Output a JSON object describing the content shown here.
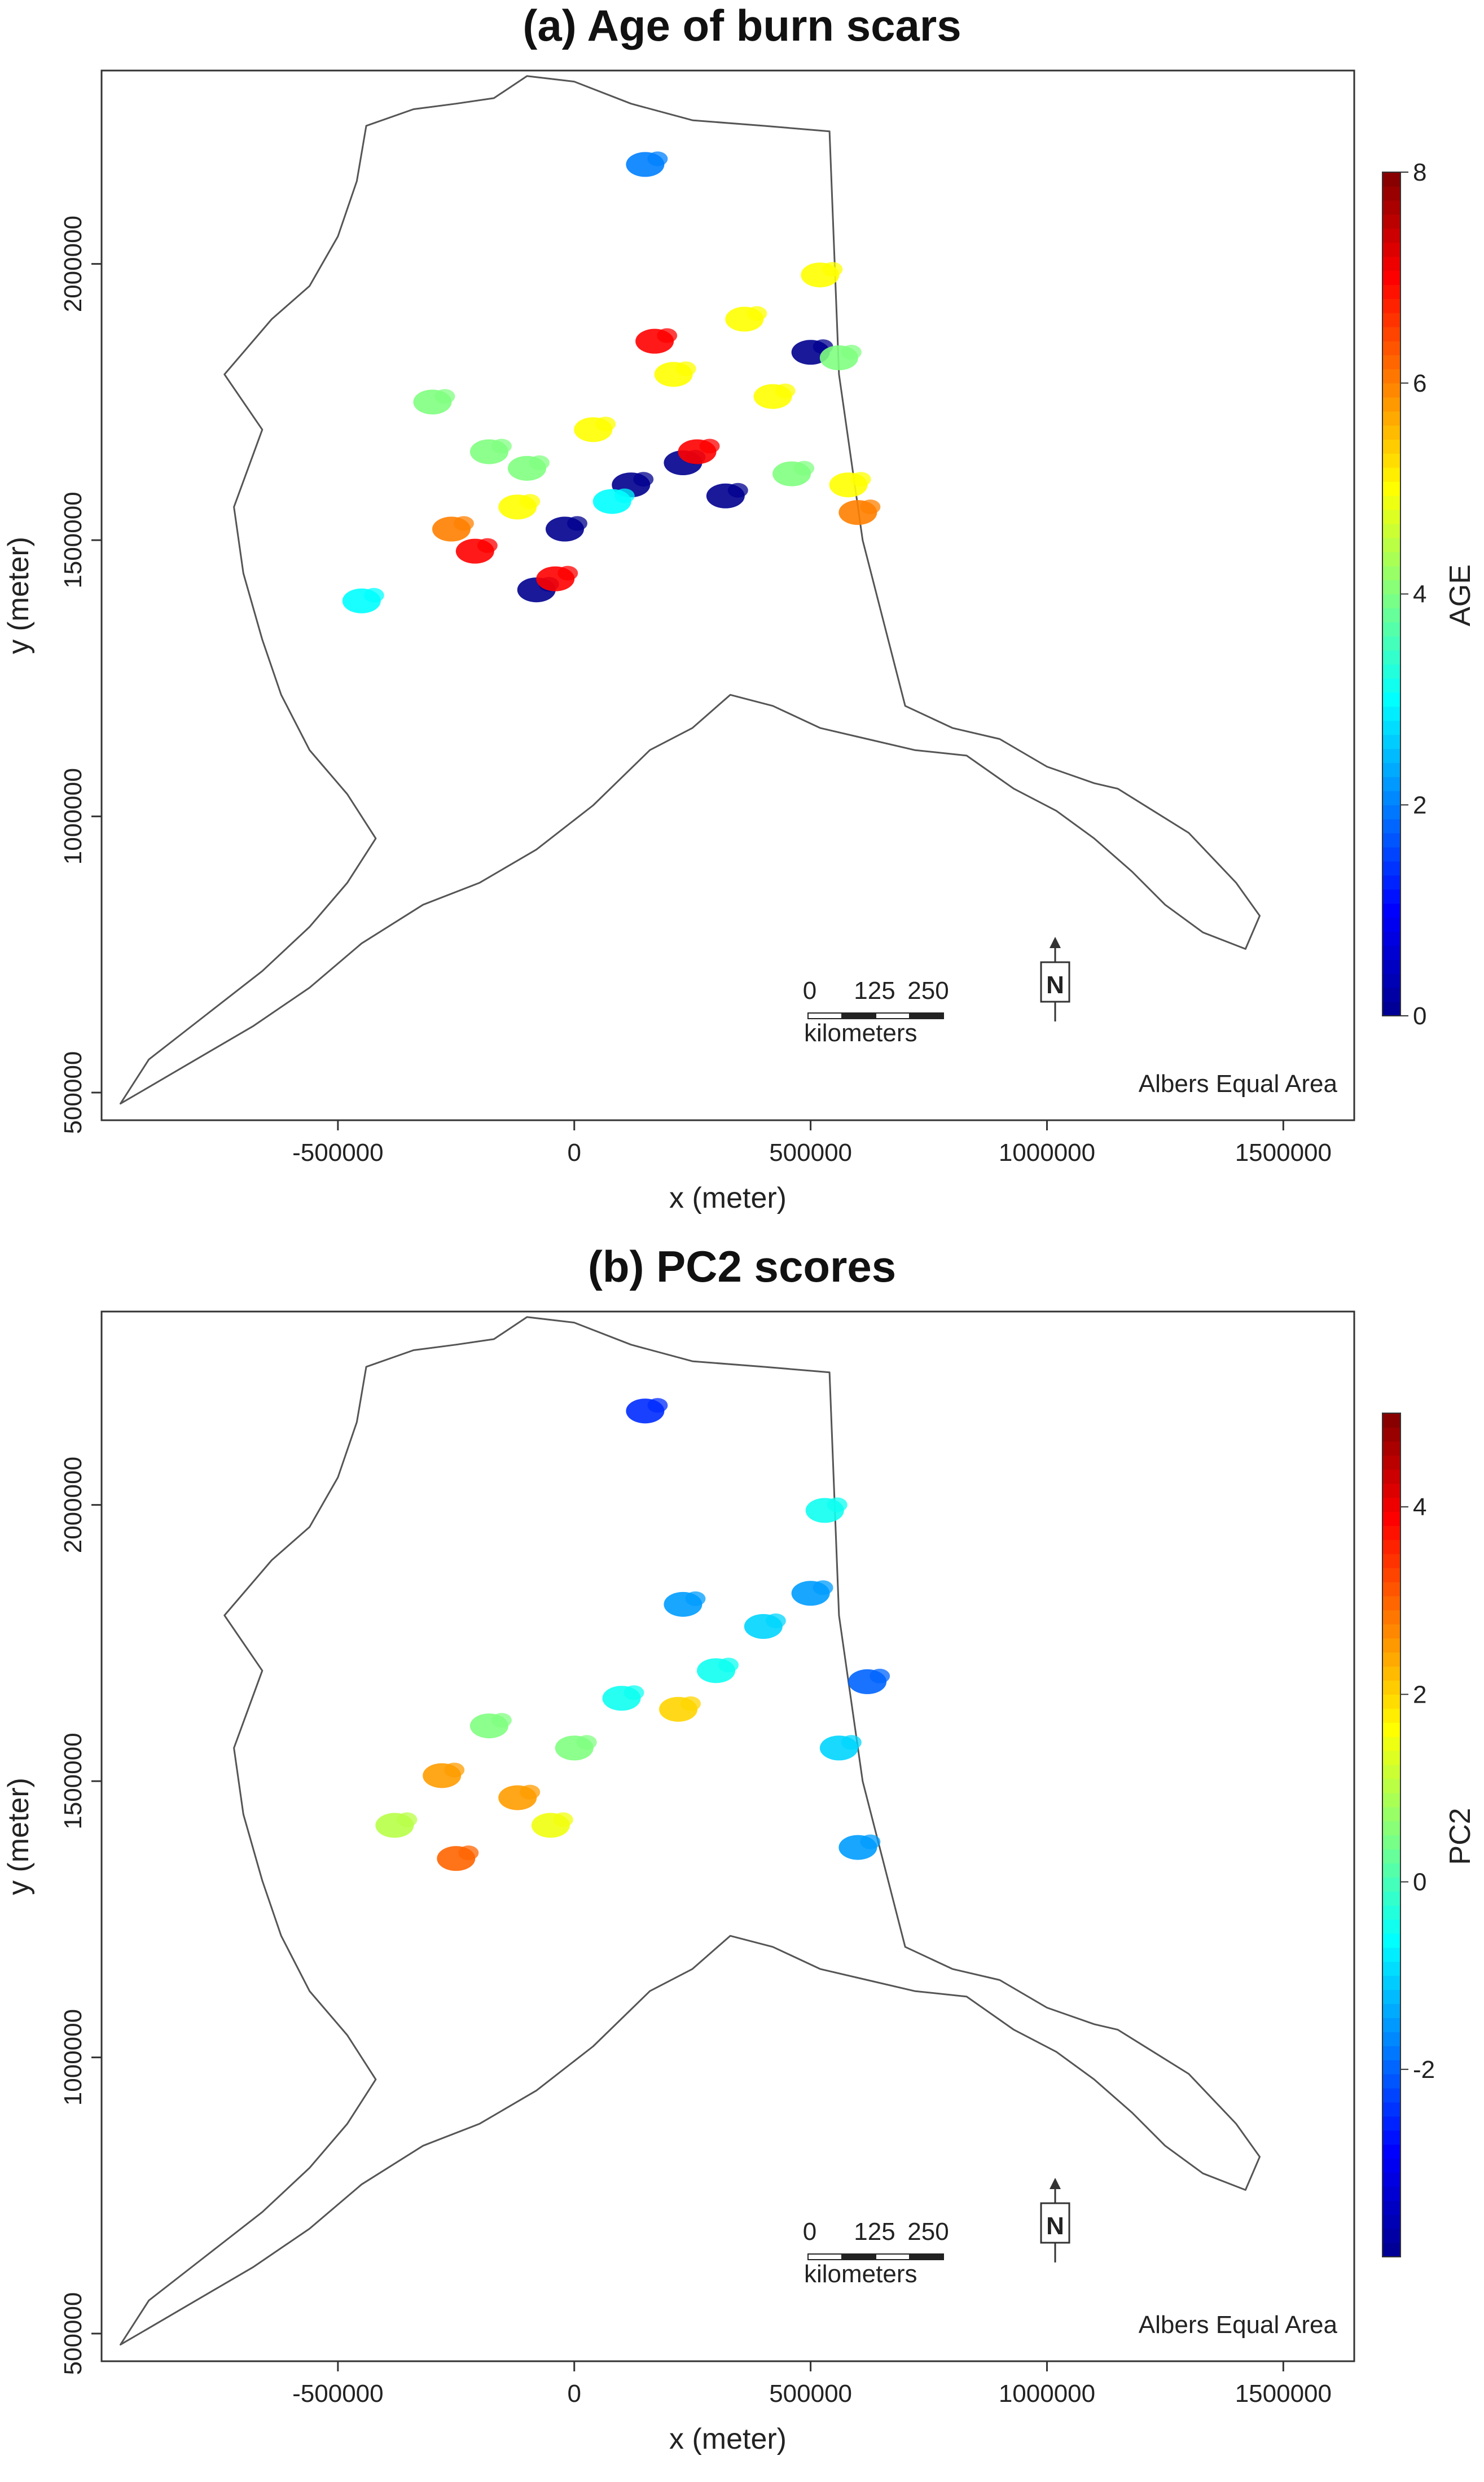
{
  "figure": {
    "panels": [
      {
        "id": "a",
        "title": "(a) Age of burn scars",
        "x_label": "x (meter)",
        "y_label": "y (meter)",
        "x_ticks": [
          "-500000",
          "0",
          "500000",
          "1000000",
          "1500000"
        ],
        "y_ticks": [
          "500000",
          "1000000",
          "1500000",
          "2000000"
        ],
        "colorbar": {
          "label": "AGE",
          "ticks": [
            "0",
            "2",
            "4",
            "6",
            "8"
          ],
          "range": [
            0,
            8
          ]
        },
        "scalebar": {
          "labels": [
            "0",
            "125",
            "250"
          ],
          "unit": "kilometers"
        },
        "projection": "Albers Equal Area",
        "north_arrow_letter": "N"
      },
      {
        "id": "b",
        "title": "(b) PC2 scores",
        "x_label": "x (meter)",
        "y_label": "y (meter)",
        "x_ticks": [
          "-500000",
          "0",
          "500000",
          "1000000",
          "1500000"
        ],
        "y_ticks": [
          "500000",
          "1000000",
          "1500000",
          "2000000"
        ],
        "colorbar": {
          "label": "PC2",
          "ticks": [
            "-2",
            "0",
            "2",
            "4"
          ],
          "range": [
            -4,
            5
          ]
        },
        "scalebar": {
          "labels": [
            "0",
            "125",
            "250"
          ],
          "unit": "kilometers"
        },
        "projection": "Albers Equal Area",
        "north_arrow_letter": "N"
      }
    ],
    "colors": {
      "outline": "#555555",
      "jet": [
        "#00008f",
        "#0000ff",
        "#0080ff",
        "#00ffff",
        "#80ff80",
        "#ffff00",
        "#ff8000",
        "#ff0000",
        "#800000"
      ]
    }
  },
  "chart_data": [
    {
      "type": "heatmap",
      "title": "(a) Age of burn scars",
      "xlabel": "x (meter)",
      "ylabel": "y (meter)",
      "xlim": [
        -1000000,
        1650000
      ],
      "ylim": [
        450000,
        2350000
      ],
      "colorbar_label": "AGE",
      "clim": [
        0,
        8
      ],
      "grid": false,
      "points": [
        {
          "x": 150000,
          "y": 2180000,
          "v": 2
        },
        {
          "x": 500000,
          "y": 1840000,
          "v": 0
        },
        {
          "x": 230000,
          "y": 1640000,
          "v": 0
        },
        {
          "x": 120000,
          "y": 1600000,
          "v": 0
        },
        {
          "x": -20000,
          "y": 1520000,
          "v": 0
        },
        {
          "x": 320000,
          "y": 1580000,
          "v": 0
        },
        {
          "x": -80000,
          "y": 1410000,
          "v": 0
        },
        {
          "x": 260000,
          "y": 1660000,
          "v": 7
        },
        {
          "x": -210000,
          "y": 1480000,
          "v": 7
        },
        {
          "x": -40000,
          "y": 1430000,
          "v": 7
        },
        {
          "x": 170000,
          "y": 1860000,
          "v": 7
        },
        {
          "x": -260000,
          "y": 1520000,
          "v": 6
        },
        {
          "x": 600000,
          "y": 1550000,
          "v": 6
        },
        {
          "x": 210000,
          "y": 1800000,
          "v": 5
        },
        {
          "x": 420000,
          "y": 1760000,
          "v": 5
        },
        {
          "x": 520000,
          "y": 1980000,
          "v": 5
        },
        {
          "x": 580000,
          "y": 1600000,
          "v": 5
        },
        {
          "x": 40000,
          "y": 1700000,
          "v": 5
        },
        {
          "x": 360000,
          "y": 1900000,
          "v": 5
        },
        {
          "x": -120000,
          "y": 1560000,
          "v": 5
        },
        {
          "x": -180000,
          "y": 1660000,
          "v": 4
        },
        {
          "x": -300000,
          "y": 1750000,
          "v": 4
        },
        {
          "x": 560000,
          "y": 1830000,
          "v": 4
        },
        {
          "x": 460000,
          "y": 1620000,
          "v": 4
        },
        {
          "x": -100000,
          "y": 1630000,
          "v": 4
        },
        {
          "x": 80000,
          "y": 1570000,
          "v": 3
        },
        {
          "x": -450000,
          "y": 1390000,
          "v": 3
        }
      ]
    },
    {
      "type": "heatmap",
      "title": "(b) PC2 scores",
      "xlabel": "x (meter)",
      "ylabel": "y (meter)",
      "xlim": [
        -1000000,
        1650000
      ],
      "ylim": [
        450000,
        2350000
      ],
      "colorbar_label": "PC2",
      "clim": [
        -4,
        5
      ],
      "grid": false,
      "points": [
        {
          "x": 150000,
          "y": 2170000,
          "v": -2.5
        },
        {
          "x": 500000,
          "y": 1840000,
          "v": -1.5
        },
        {
          "x": 400000,
          "y": 1780000,
          "v": -1
        },
        {
          "x": 230000,
          "y": 1820000,
          "v": -1.5
        },
        {
          "x": 300000,
          "y": 1700000,
          "v": -0.5
        },
        {
          "x": 100000,
          "y": 1650000,
          "v": -0.5
        },
        {
          "x": 560000,
          "y": 1560000,
          "v": -1
        },
        {
          "x": 530000,
          "y": 1990000,
          "v": -0.5
        },
        {
          "x": 620000,
          "y": 1680000,
          "v": -2
        },
        {
          "x": 220000,
          "y": 1630000,
          "v": 2
        },
        {
          "x": -250000,
          "y": 1360000,
          "v": 3
        },
        {
          "x": -280000,
          "y": 1510000,
          "v": 2.5
        },
        {
          "x": -120000,
          "y": 1470000,
          "v": 2.5
        },
        {
          "x": -50000,
          "y": 1420000,
          "v": 1.5
        },
        {
          "x": -380000,
          "y": 1420000,
          "v": 1
        },
        {
          "x": 0,
          "y": 1560000,
          "v": 0.5
        },
        {
          "x": -180000,
          "y": 1600000,
          "v": 0.5
        },
        {
          "x": 600000,
          "y": 1380000,
          "v": -1.5
        }
      ]
    }
  ]
}
